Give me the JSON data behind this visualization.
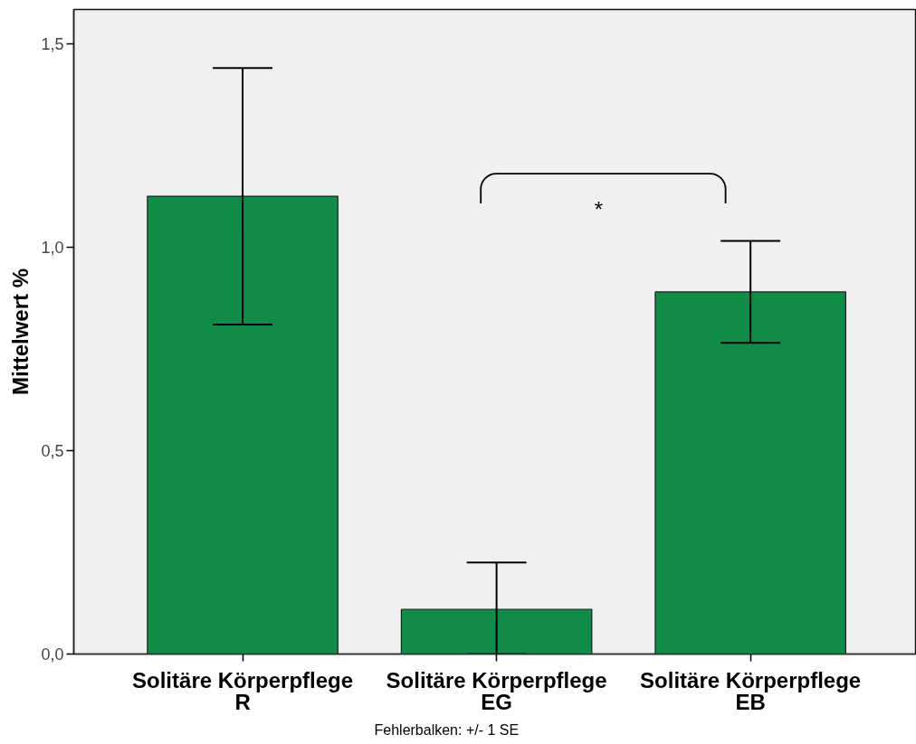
{
  "chart_data": {
    "type": "bar",
    "categories": [
      "Solitäre Körperpflege\nR",
      "Solitäre Körperpflege\nEG",
      "Solitäre Körperpflege\nEB"
    ],
    "values": [
      1.125,
      0.11,
      0.89
    ],
    "color": "#118c48",
    "errors": [
      0.315,
      [
        0,
        0.225
      ],
      0.125
    ],
    "ylabel": "Mittelwert %",
    "ylim": [
      0,
      1.584
    ],
    "yticks": [
      {
        "value": 0,
        "label": "0,0"
      },
      {
        "value": 0.5,
        "label": "0,5"
      },
      {
        "value": 1.0,
        "label": "1,0"
      },
      {
        "value": 1.5,
        "label": "1,5"
      }
    ],
    "annotations": [
      "*",
      "Fehlerbalken: +/- 1 SE"
    ]
  }
}
